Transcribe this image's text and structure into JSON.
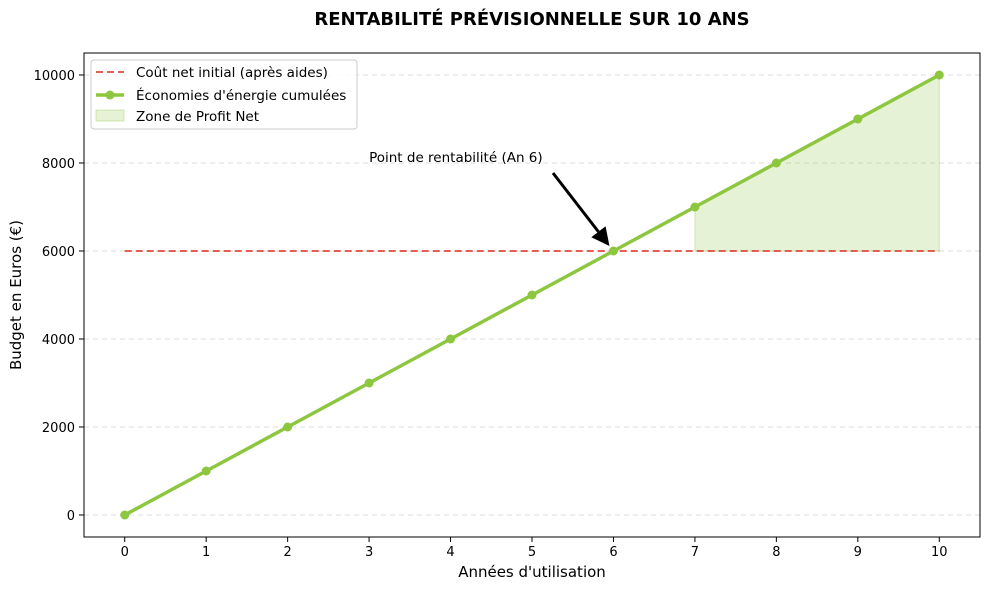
{
  "chart_data": {
    "type": "line",
    "title": "RENTABILITÉ PRÉVISIONNELLE SUR 10 ANS",
    "xlabel": "Années d'utilisation",
    "ylabel": "Budget en Euros (€)",
    "x": [
      0,
      1,
      2,
      3,
      4,
      5,
      6,
      7,
      8,
      9,
      10
    ],
    "xlim": [
      -0.5,
      10.5
    ],
    "ylim": [
      -500,
      10500
    ],
    "xticks": [
      0,
      1,
      2,
      3,
      4,
      5,
      6,
      7,
      8,
      9,
      10
    ],
    "yticks": [
      0,
      2000,
      4000,
      6000,
      8000,
      10000
    ],
    "grid": "horizontal dashed",
    "legend_position": "upper-left",
    "series": [
      {
        "name": "Coût net initial (après aides)",
        "kind": "dashed-line",
        "color": "#e0473c",
        "x": [
          0,
          10
        ],
        "values": [
          6000,
          6000
        ]
      },
      {
        "name": "Économies d'énergie cumulées",
        "kind": "line-with-markers",
        "color": "#8dc63f",
        "x": [
          0,
          1,
          2,
          3,
          4,
          5,
          6,
          7,
          8,
          9,
          10
        ],
        "values": [
          0,
          1000,
          2000,
          3000,
          4000,
          5000,
          6000,
          7000,
          8000,
          9000,
          10000
        ]
      },
      {
        "name": "Zone de Profit Net",
        "kind": "fill-between",
        "color": "#8dc63f",
        "x": [
          7,
          8,
          9,
          10
        ],
        "upper": [
          7000,
          8000,
          9000,
          10000
        ],
        "lower": [
          6000,
          6000,
          6000,
          6000
        ]
      }
    ],
    "annotations": [
      {
        "text": "Point de rentabilité (An 6)",
        "text_pos": [
          3,
          8000
        ],
        "arrow_to": [
          6,
          6000
        ]
      }
    ]
  }
}
